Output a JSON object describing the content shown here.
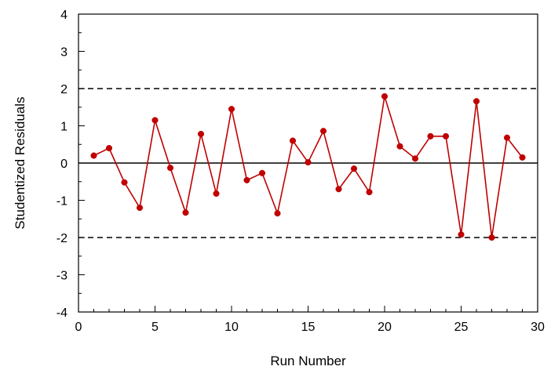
{
  "chart_data": {
    "type": "line",
    "title": "",
    "xlabel": "Run Number",
    "ylabel": "Studentized Residuals",
    "xlim": [
      0,
      30
    ],
    "ylim": [
      -4,
      4
    ],
    "x_major_ticks": [
      0,
      5,
      10,
      15,
      20,
      25,
      30
    ],
    "x_tick_labels": [
      "0",
      "5",
      "10",
      "15",
      "20",
      "25",
      "30"
    ],
    "x_minor_step": 1,
    "y_major_ticks": [
      -4,
      -3,
      -2,
      -1,
      0,
      1,
      2,
      3,
      4
    ],
    "y_tick_labels": [
      "-4",
      "-3",
      "-2",
      "-1",
      "0",
      "1",
      "2",
      "3",
      "4"
    ],
    "y_minor_step": 0.5,
    "grid": false,
    "legend": "none",
    "reference_lines": [
      {
        "y": 2,
        "style": "dashed"
      },
      {
        "y": -2,
        "style": "dashed"
      },
      {
        "y": 0,
        "style": "solid"
      }
    ],
    "series": [
      {
        "color": "#c00000",
        "marker": "circle",
        "x": [
          1,
          2,
          3,
          4,
          5,
          6,
          7,
          8,
          9,
          10,
          11,
          12,
          13,
          14,
          15,
          16,
          17,
          18,
          19,
          20,
          21,
          22,
          23,
          24,
          25,
          26,
          27,
          28,
          29
        ],
        "y": [
          0.2,
          0.4,
          -0.52,
          -1.2,
          1.15,
          -0.13,
          -1.33,
          0.78,
          -0.82,
          1.45,
          -0.46,
          -0.27,
          -1.35,
          0.6,
          0.02,
          0.86,
          -0.7,
          -0.15,
          -0.78,
          1.79,
          0.45,
          0.12,
          0.72,
          0.72,
          -1.92,
          1.66,
          -2.0,
          0.68,
          0.15
        ]
      }
    ]
  }
}
